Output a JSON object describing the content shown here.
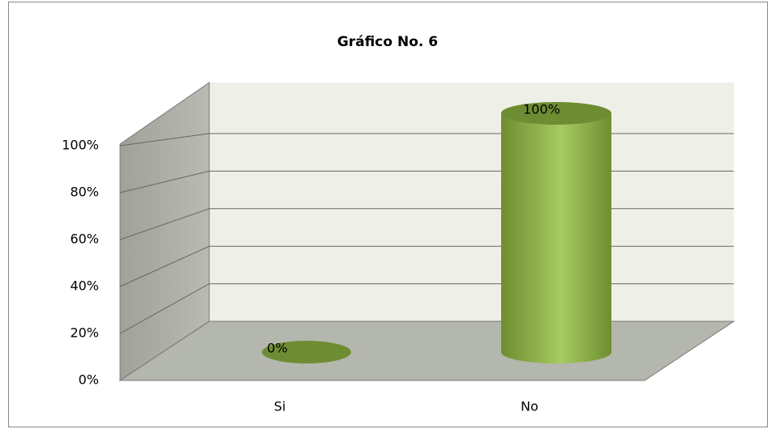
{
  "chart_data": {
    "type": "bar3d",
    "title": "Gráfico No. 6",
    "categories": [
      "Si",
      "No"
    ],
    "values": [
      0,
      100
    ],
    "value_labels": [
      "0%",
      "100%"
    ],
    "color": "#8cb04a",
    "ylim": [
      0,
      100
    ],
    "yticks": [
      {
        "value": 0,
        "label": "0%"
      },
      {
        "value": 20,
        "label": "20%"
      },
      {
        "value": 40,
        "label": "40%"
      },
      {
        "value": 60,
        "label": "60%"
      },
      {
        "value": 80,
        "label": "80%"
      },
      {
        "value": 100,
        "label": "100%"
      }
    ],
    "grid": true
  }
}
